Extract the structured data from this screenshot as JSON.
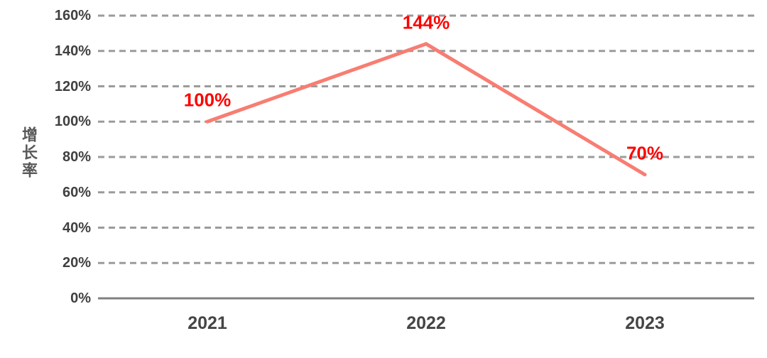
{
  "chart_data": {
    "type": "line",
    "title": "",
    "xlabel": "",
    "ylabel": "增长率",
    "categories": [
      "2021",
      "2022",
      "2023"
    ],
    "series": [
      {
        "name": "增长率",
        "values": [
          100,
          144,
          70
        ]
      }
    ],
    "data_labels": [
      "100%",
      "144%",
      "70%"
    ],
    "y_ticks": [
      "0%",
      "20%",
      "40%",
      "60%",
      "80%",
      "100%",
      "120%",
      "140%",
      "160%"
    ],
    "ylim": [
      0,
      160
    ],
    "y_tick_step": 20,
    "grid": "horizontal-dashed",
    "legend": "none",
    "colors": {
      "line": "#f87d72",
      "data_label": "#ff0000",
      "tick_text": "#404040",
      "x_tick_text": "#454545",
      "ylabel_text": "#595959",
      "gridline": "#9b9b9b",
      "axis_line": "#808080",
      "background": "#ffffff"
    }
  }
}
